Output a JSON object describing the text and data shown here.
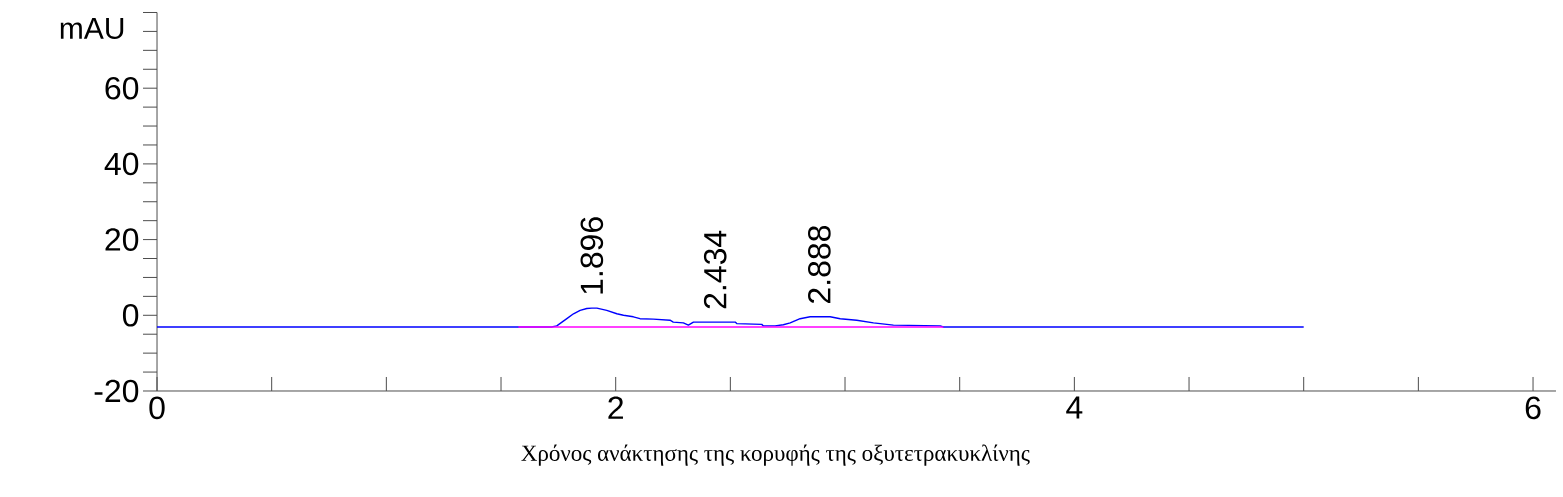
{
  "chart_data": {
    "type": "line",
    "xlabel": "Χρόνος ανάκτησης της κορυφής της οξυτετρακυκλίνης",
    "ylabel": "mAU",
    "xlim": [
      0,
      6.1
    ],
    "ylim": [
      -20,
      80
    ],
    "xticks": [
      0,
      {
        "value": 0.5,
        "label": null
      },
      {
        "value": 1,
        "label": null
      },
      {
        "value": 1.5,
        "label": null
      },
      2,
      {
        "value": 2.5,
        "label": null
      },
      {
        "value": 3,
        "label": null
      },
      {
        "value": 3.5,
        "label": null
      },
      4,
      {
        "value": 4.5,
        "label": null
      },
      {
        "value": 5,
        "label": null
      },
      {
        "value": 5.5,
        "label": null
      },
      6
    ],
    "yticks": [
      -20,
      {
        "value": -15,
        "label": null
      },
      {
        "value": -10,
        "label": null
      },
      {
        "value": -5,
        "label": null
      },
      0,
      {
        "value": 5,
        "label": null
      },
      {
        "value": 10,
        "label": null
      },
      {
        "value": 15,
        "label": null
      },
      20,
      {
        "value": 25,
        "label": null
      },
      {
        "value": 30,
        "label": null
      },
      {
        "value": 35,
        "label": null
      },
      40,
      {
        "value": 45,
        "label": null
      },
      {
        "value": 50,
        "label": null
      },
      {
        "value": 55,
        "label": null
      },
      60,
      {
        "value": 65,
        "label": null
      },
      {
        "value": 70,
        "label": null
      },
      {
        "value": 75,
        "label": null
      },
      {
        "value": 80,
        "label": null
      }
    ],
    "series": [
      {
        "color": "#0000ff",
        "x": [
          0,
          1.721,
          1.743,
          1.787,
          1.816,
          1.845,
          1.874,
          1.896,
          1.918,
          1.961,
          2.005,
          2.034,
          2.077,
          2.106,
          2.164,
          2.237,
          2.251,
          2.295,
          2.317,
          2.339,
          2.426,
          2.521,
          2.528,
          2.637,
          2.644,
          2.695,
          2.731,
          2.761,
          2.804,
          2.848,
          2.935,
          2.979,
          3.051,
          3.124,
          3.211,
          3.415,
          3.429,
          5.0
        ],
        "values": [
          -3.1,
          -3.1,
          -2.8,
          -0.9,
          0.4,
          1.3,
          1.8,
          1.9,
          1.9,
          1.3,
          0.4,
          0.0,
          -0.4,
          -0.9,
          -1.0,
          -1.3,
          -1.8,
          -2.0,
          -2.6,
          -1.8,
          -1.8,
          -1.8,
          -2.2,
          -2.4,
          -2.8,
          -2.8,
          -2.5,
          -2.0,
          -0.9,
          -0.4,
          -0.4,
          -0.9,
          -1.3,
          -2.0,
          -2.6,
          -2.8,
          -3.1,
          -3.1
        ]
      },
      {
        "color": "#ff00ff",
        "x": [
          1.576,
          3.429
        ],
        "values": [
          -3.1,
          -3.1
        ]
      }
    ],
    "annotations": [
      {
        "text": "1.896",
        "x": 1.896,
        "y": 1.9
      },
      {
        "text": "2.434",
        "x": 2.434,
        "y": -1.8
      },
      {
        "text": "2.888",
        "x": 2.888,
        "y": -0.4
      }
    ]
  }
}
